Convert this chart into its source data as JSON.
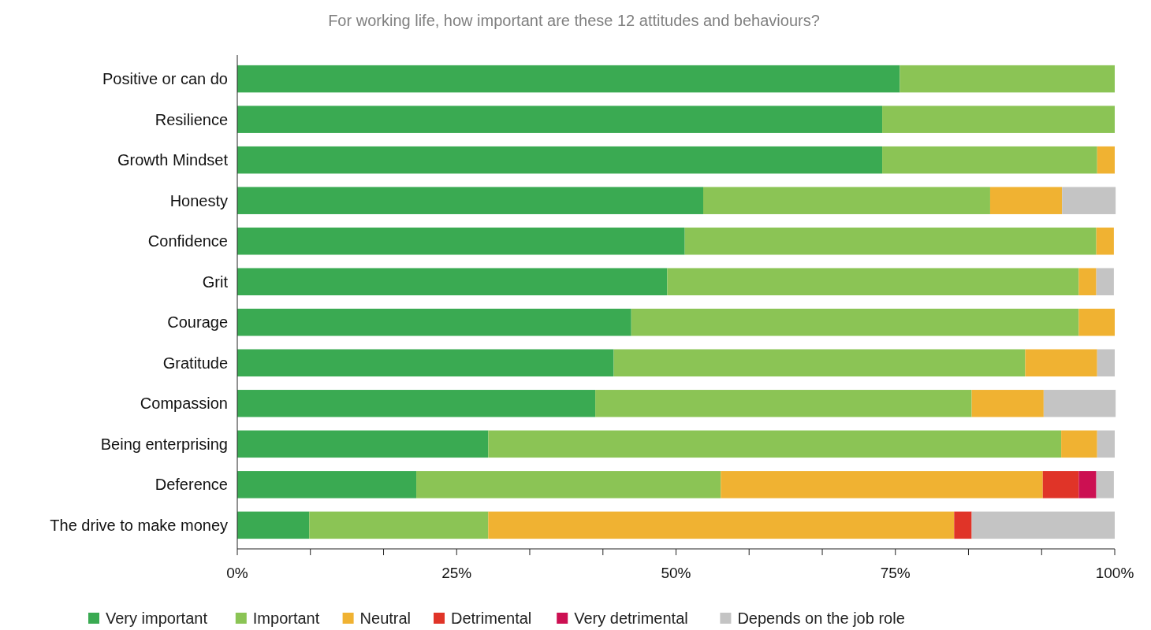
{
  "chart_data": {
    "type": "bar",
    "orientation": "horizontal",
    "stacked": true,
    "title": "For working life, how important are these 12 attitudes and behaviours?",
    "categories": [
      "Positive or can do",
      "Resilience",
      "Growth Mindset",
      "Honesty",
      "Confidence",
      "Grit",
      "Courage",
      "Gratitude",
      "Compassion",
      "Being enterprising",
      "Deference",
      "The drive to make money"
    ],
    "series": [
      {
        "name": "Very important",
        "color": "#3aaa52",
        "values": [
          75.5,
          73.5,
          73.5,
          53.1,
          51.0,
          49.0,
          44.9,
          42.9,
          40.8,
          28.6,
          20.4,
          8.2
        ]
      },
      {
        "name": "Important",
        "color": "#8bc455",
        "values": [
          24.5,
          26.5,
          24.5,
          32.7,
          46.9,
          46.9,
          51.0,
          46.9,
          42.9,
          65.3,
          34.7,
          20.4
        ]
      },
      {
        "name": "Neutral",
        "color": "#f0b232",
        "values": [
          0,
          0,
          2.0,
          8.2,
          2.0,
          2.0,
          4.1,
          8.2,
          8.2,
          4.1,
          36.7,
          53.1
        ]
      },
      {
        "name": "Detrimental",
        "color": "#e03428",
        "values": [
          0,
          0,
          0,
          0,
          0,
          0,
          0,
          0,
          0,
          0,
          4.1,
          2.0
        ]
      },
      {
        "name": "Very detrimental",
        "color": "#cc1052",
        "values": [
          0,
          0,
          0,
          0,
          0,
          0,
          0,
          0,
          0,
          0,
          2.0,
          0
        ]
      },
      {
        "name": "Depends on the job role",
        "color": "#c4c4c4",
        "values": [
          0,
          0,
          0,
          6.1,
          0,
          2.0,
          0,
          2.0,
          8.2,
          2.0,
          2.0,
          16.3
        ]
      }
    ],
    "xlim": [
      0,
      100
    ],
    "xticks": [
      {
        "value": 0,
        "label": "0%"
      },
      {
        "value": 8.33,
        "label": null
      },
      {
        "value": 16.67,
        "label": null
      },
      {
        "value": 25,
        "label": "25%"
      },
      {
        "value": 33.33,
        "label": null
      },
      {
        "value": 41.67,
        "label": null
      },
      {
        "value": 50,
        "label": "50%"
      },
      {
        "value": 58.33,
        "label": null
      },
      {
        "value": 66.67,
        "label": null
      },
      {
        "value": 75,
        "label": "75%"
      },
      {
        "value": 83.33,
        "label": null
      },
      {
        "value": 91.67,
        "label": null
      },
      {
        "value": 100,
        "label": "100%"
      }
    ],
    "grid": false,
    "legend": "bottom"
  }
}
